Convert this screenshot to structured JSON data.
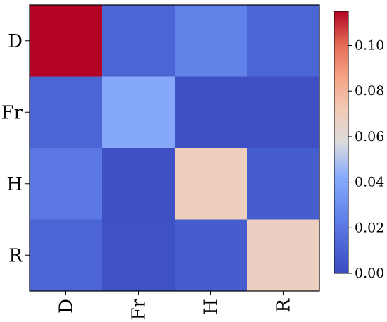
{
  "chart_data": {
    "type": "heatmap",
    "title": "",
    "xlabel": "",
    "ylabel": "",
    "x_categories": [
      "D",
      "Fr",
      "H",
      "R"
    ],
    "y_categories": [
      "D",
      "Fr",
      "H",
      "R"
    ],
    "values": [
      [
        0.115,
        0.012,
        0.025,
        0.012
      ],
      [
        0.012,
        0.041,
        0.002,
        0.002
      ],
      [
        0.02,
        0.002,
        0.069,
        0.008
      ],
      [
        0.012,
        0.003,
        0.008,
        0.067
      ]
    ],
    "colorscale": "coolwarm",
    "colorbar": {
      "range": [
        0.0,
        0.115
      ],
      "ticks": [
        "0.00",
        "0.02",
        "0.04",
        "0.06",
        "0.08",
        "0.10"
      ]
    },
    "grid": false,
    "legend": "colorbar-right"
  }
}
